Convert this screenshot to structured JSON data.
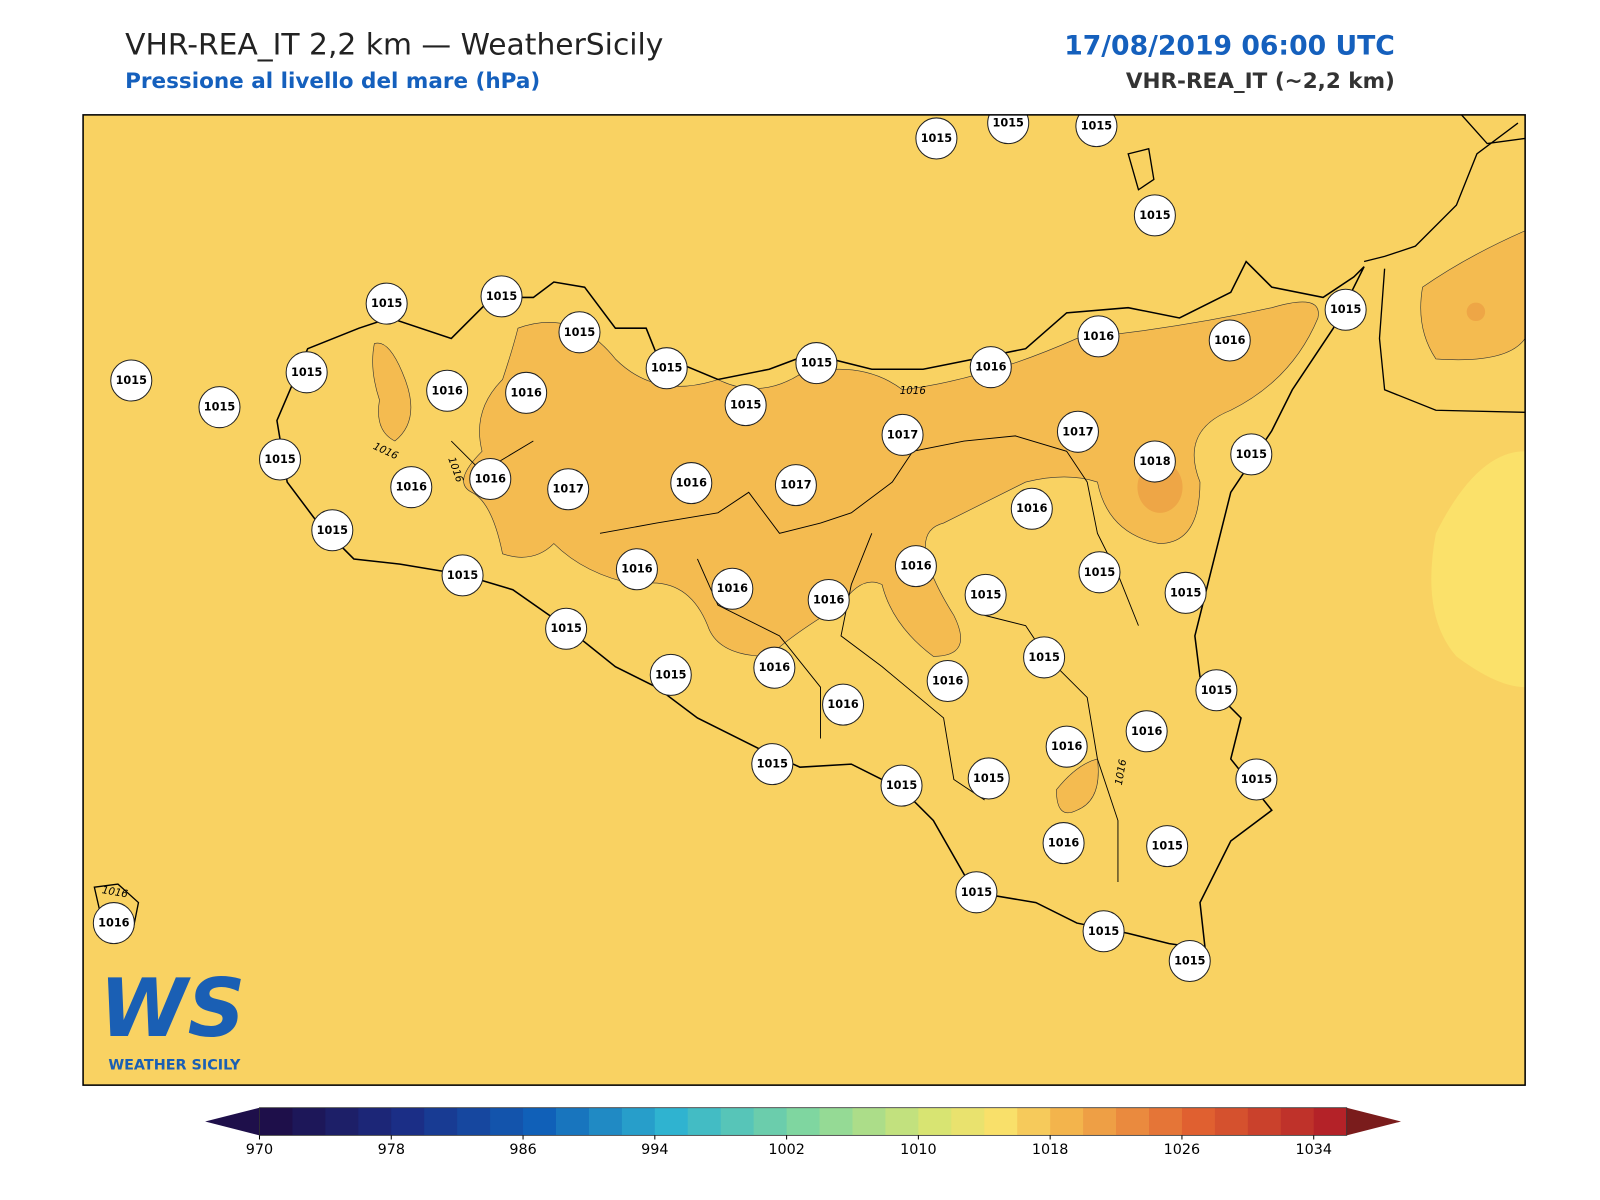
{
  "header": {
    "title": "VHR-REA_IT 2,2 km — WeatherSicily",
    "subtitle": "Pressione al livello del mare (hPa)",
    "datetime": "17/08/2019 06:00 UTC",
    "model": "VHR-REA_IT (~2,2 km)"
  },
  "stations": [
    1015,
    1015,
    1015,
    1015,
    1015,
    1015,
    1015,
    1015,
    1015,
    1015,
    1016,
    1016,
    1015,
    1015,
    1015,
    1016,
    1016,
    1016,
    1015,
    1017,
    1017,
    1018,
    1015,
    1015,
    1016,
    1016,
    1017,
    1016,
    1017,
    1016,
    1015,
    1016,
    1016,
    1015,
    1016,
    1016,
    1015,
    1015,
    1015,
    1015,
    1015,
    1015,
    1016,
    1016,
    1016,
    1015,
    1016,
    1016,
    1015,
    1015,
    1015,
    1015,
    1016,
    1015,
    1015,
    1016,
    1015,
    1015
  ],
  "contour_labels": [
    1016,
    1016,
    1016,
    1016,
    1016
  ],
  "colorbar": {
    "range": [
      970,
      1036
    ],
    "step": 2,
    "ticks": [
      970,
      978,
      986,
      994,
      1002,
      1010,
      1018,
      1026,
      1034
    ],
    "color_stops": [
      [
        970,
        "#1e0f4a"
      ],
      [
        978,
        "#1b2e86"
      ],
      [
        986,
        "#1060b8"
      ],
      [
        994,
        "#2fb3d0"
      ],
      [
        1002,
        "#7fd6a0"
      ],
      [
        1010,
        "#d8e472"
      ],
      [
        1014,
        "#f9e06a"
      ],
      [
        1018,
        "#f3b44c"
      ],
      [
        1026,
        "#e06030"
      ],
      [
        1034,
        "#b42228"
      ]
    ]
  },
  "logo": {
    "mark": "WS",
    "name": "WEATHER SICILY"
  }
}
